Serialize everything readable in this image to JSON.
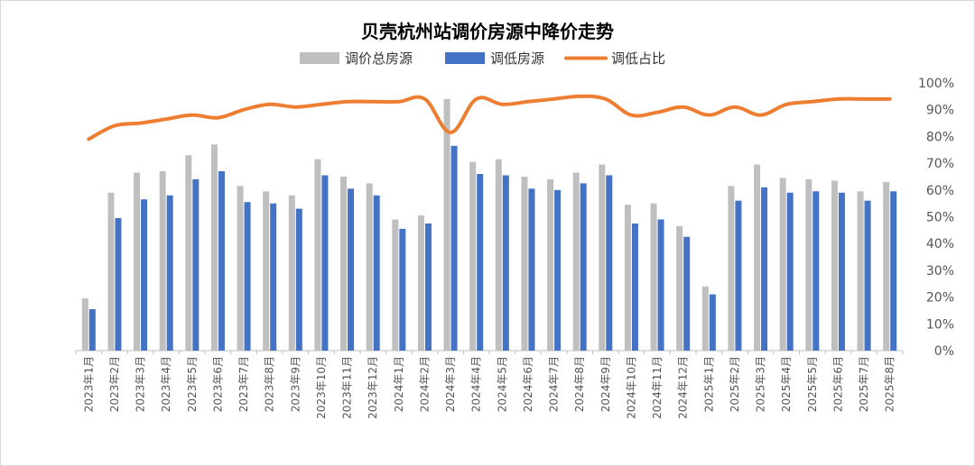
{
  "chart_data": {
    "type": "bar",
    "title": "贝壳杭州站调价房源中降价走势",
    "categories": [
      "2023年1月",
      "2023年2月",
      "2023年3月",
      "2023年4月",
      "2023年5月",
      "2023年6月",
      "2023年7月",
      "2023年8月",
      "2023年9月",
      "2023年10月",
      "2023年11月",
      "2023年12月",
      "2024年1月",
      "2024年2月",
      "2024年3月",
      "2024年4月",
      "2024年5月",
      "2024年6月",
      "2024年7月",
      "2024年8月",
      "2024年9月",
      "2024年10月",
      "2024年11月",
      "2024年12月",
      "2025年1月",
      "2025年2月",
      "2025年3月",
      "2025年4月",
      "2025年5月",
      "2025年6月",
      "2025年7月",
      "2025年8月"
    ],
    "series": [
      {
        "name": "调价总房源",
        "type": "bar",
        "color": "#BFBFBF",
        "values": [
          19.5,
          59,
          66.5,
          67,
          73,
          77,
          61.5,
          59.5,
          58,
          71.5,
          65,
          62.5,
          49,
          50.5,
          94,
          70.5,
          71.5,
          65,
          64,
          66.5,
          69.5,
          54.5,
          55,
          46.5,
          24,
          61.5,
          69.5,
          64.5,
          64,
          63.5,
          59.5,
          63
        ]
      },
      {
        "name": "调低房源",
        "type": "bar",
        "color": "#4472C4",
        "values": [
          15.5,
          49.5,
          56.5,
          58,
          64,
          67,
          55.5,
          55,
          53,
          65.5,
          60.5,
          58,
          45.5,
          47.5,
          76.5,
          66,
          65.5,
          60.5,
          60,
          62.5,
          65.5,
          47.5,
          49,
          42.5,
          21,
          56,
          61,
          59,
          59.5,
          59,
          56,
          59.5
        ]
      },
      {
        "name": "调低占比",
        "type": "line",
        "color": "#ED7D31",
        "values": [
          79,
          84,
          85,
          86.5,
          88,
          87,
          90,
          92,
          91,
          92,
          93,
          93,
          93,
          94,
          81.5,
          94,
          92,
          93,
          94,
          95,
          94,
          88,
          89,
          91,
          88,
          91,
          88,
          92,
          93,
          94,
          94,
          94
        ]
      }
    ],
    "y_axis": {
      "ylim": [
        0,
        100
      ],
      "tick_labels": [
        "0%",
        "10%",
        "20%",
        "30%",
        "40%",
        "50%",
        "60%",
        "70%",
        "80%",
        "90%",
        "100%"
      ]
    },
    "gridlines": false,
    "legend_position": "top"
  }
}
